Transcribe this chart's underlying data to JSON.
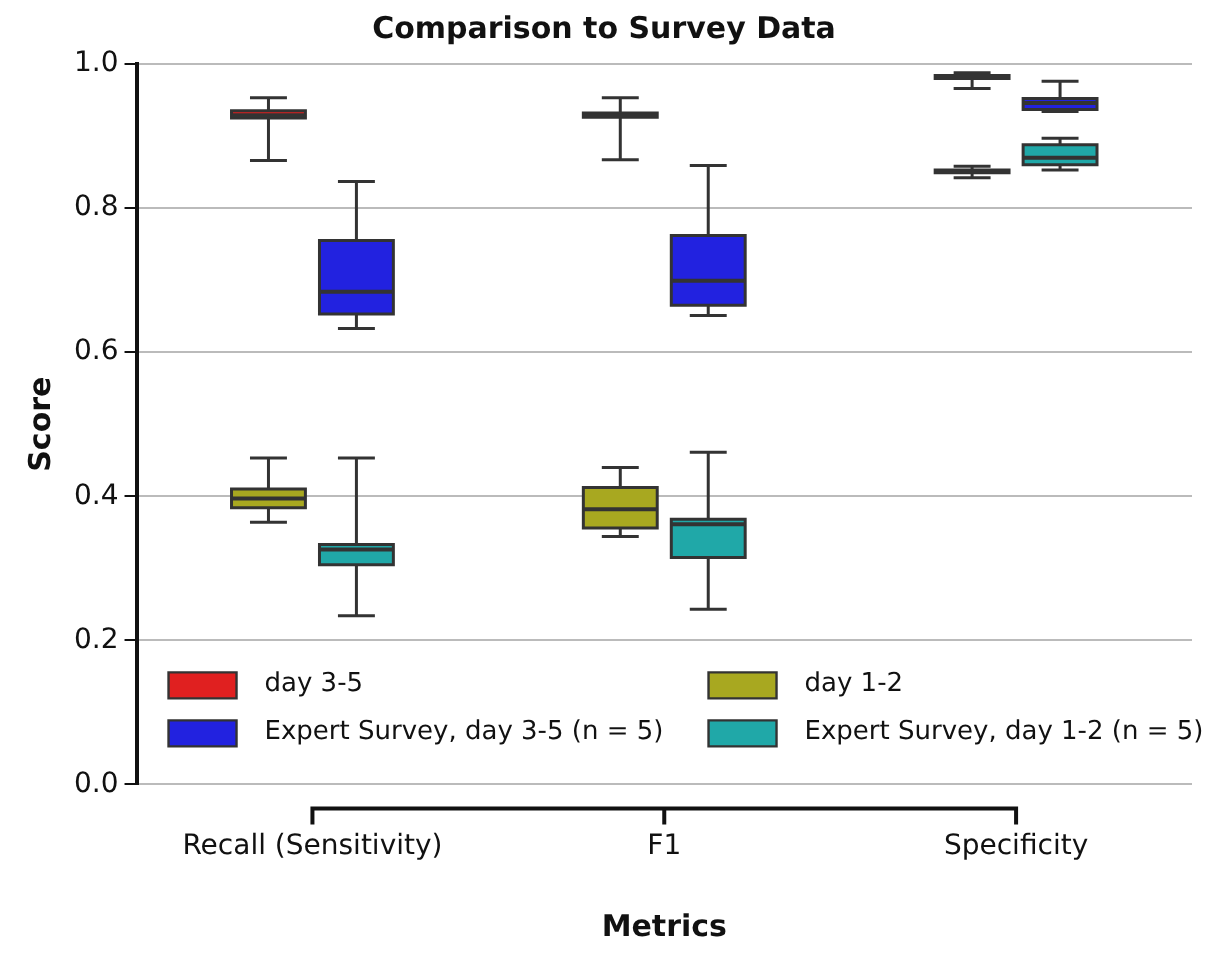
{
  "chart_data": {
    "type": "box",
    "title": "Comparison to Survey Data",
    "xlabel": "Metrics",
    "ylabel": "Score",
    "categories": [
      "Recall (Sensitivity)",
      "F1",
      "Specificity"
    ],
    "ylim": [
      0,
      1
    ],
    "yticks": [
      {
        "value": 0,
        "label": "0.0"
      },
      {
        "value": 0.2,
        "label": "0.2"
      },
      {
        "value": 0.4,
        "label": "0.4"
      },
      {
        "value": 0.6,
        "label": "0.6"
      },
      {
        "value": 0.8,
        "label": "0.8"
      },
      {
        "value": 1,
        "label": "1.0"
      }
    ],
    "grid": "y",
    "legend": "bottom",
    "series": [
      {
        "name": "day 3-5",
        "color": "#e02020",
        "boxes": [
          {
            "low": 0.866,
            "q1": 0.925,
            "median": 0.929,
            "q3": 0.935,
            "high": 0.953
          },
          {
            "low": 0.867,
            "q1": 0.926,
            "median": 0.929,
            "q3": 0.932,
            "high": 0.953
          },
          {
            "low": 0.966,
            "q1": 0.98,
            "median": 0.982,
            "q3": 0.984,
            "high": 0.988
          }
        ]
      },
      {
        "name": "Expert Survey, day 3-5 (n = 5)",
        "color": "#2222e0",
        "boxes": [
          {
            "low": 0.633,
            "q1": 0.653,
            "median": 0.684,
            "q3": 0.755,
            "high": 0.837
          },
          {
            "low": 0.651,
            "q1": 0.665,
            "median": 0.699,
            "q3": 0.762,
            "high": 0.859
          },
          {
            "low": 0.934,
            "q1": 0.937,
            "median": 0.946,
            "q3": 0.952,
            "high": 0.976
          }
        ]
      },
      {
        "name": "day 1-2",
        "color": "#a8a820",
        "boxes": [
          {
            "low": 0.364,
            "q1": 0.384,
            "median": 0.397,
            "q3": 0.41,
            "high": 0.453
          },
          {
            "low": 0.344,
            "q1": 0.356,
            "median": 0.382,
            "q3": 0.412,
            "high": 0.44
          },
          {
            "low": 0.842,
            "q1": 0.849,
            "median": 0.851,
            "q3": 0.853,
            "high": 0.858
          }
        ]
      },
      {
        "name": "Expert Survey, day 1-2 (n = 5)",
        "color": "#20a8a8",
        "boxes": [
          {
            "low": 0.234,
            "q1": 0.305,
            "median": 0.326,
            "q3": 0.333,
            "high": 0.453
          },
          {
            "low": 0.243,
            "q1": 0.315,
            "median": 0.361,
            "q3": 0.368,
            "high": 0.461
          },
          {
            "low": 0.853,
            "q1": 0.86,
            "median": 0.87,
            "q3": 0.888,
            "high": 0.897
          }
        ]
      }
    ]
  }
}
